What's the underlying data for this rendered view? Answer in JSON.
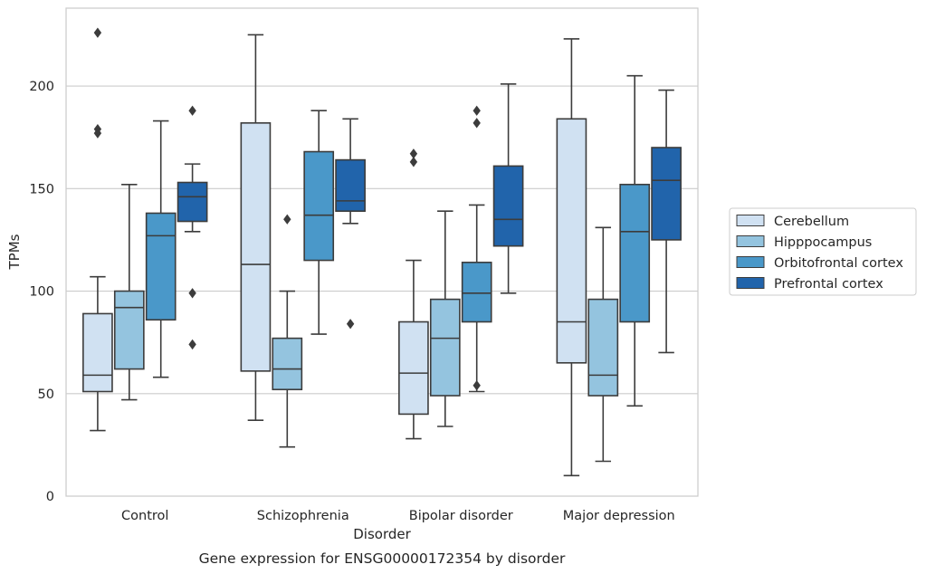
{
  "chart_data": {
    "type": "box",
    "caption": "Gene expression for ENSG00000172354 by disorder",
    "xlabel": "Disorder",
    "ylabel": "TPMs",
    "ylim": [
      0,
      238
    ],
    "yticks": [
      0,
      50,
      100,
      150,
      200
    ],
    "grid": "horizontal",
    "legend_placement": "center-right",
    "categories": [
      "Control",
      "Schizophrenia",
      "Bipolar disorder",
      "Major depression"
    ],
    "series": [
      {
        "name": "Cerebellum",
        "color": "#d0e1f2",
        "boxes": [
          {
            "low": 32,
            "q1": 51,
            "median": 59,
            "q3": 89,
            "high": 107,
            "outliers": [
              226,
              179,
              177
            ]
          },
          {
            "low": 37,
            "q1": 61,
            "median": 113,
            "q3": 182,
            "high": 225,
            "outliers": []
          },
          {
            "low": 28,
            "q1": 40,
            "median": 60,
            "q3": 85,
            "high": 115,
            "outliers": [
              167,
              163
            ]
          },
          {
            "low": 10,
            "q1": 65,
            "median": 85,
            "q3": 184,
            "high": 223,
            "outliers": []
          }
        ]
      },
      {
        "name": "Hipppocampus",
        "color": "#94c4df",
        "boxes": [
          {
            "low": 47,
            "q1": 62,
            "median": 92,
            "q3": 100,
            "high": 152,
            "outliers": []
          },
          {
            "low": 24,
            "q1": 52,
            "median": 62,
            "q3": 77,
            "high": 100,
            "outliers": [
              135
            ]
          },
          {
            "low": 34,
            "q1": 49,
            "median": 77,
            "q3": 96,
            "high": 139,
            "outliers": []
          },
          {
            "low": 17,
            "q1": 49,
            "median": 59,
            "q3": 96,
            "high": 131,
            "outliers": []
          }
        ]
      },
      {
        "name": "Orbitofrontal cortex",
        "color": "#4a98c9",
        "boxes": [
          {
            "low": 58,
            "q1": 86,
            "median": 127,
            "q3": 138,
            "high": 183,
            "outliers": []
          },
          {
            "low": 79,
            "q1": 115,
            "median": 137,
            "q3": 168,
            "high": 188,
            "outliers": []
          },
          {
            "low": 51,
            "q1": 85,
            "median": 99,
            "q3": 114,
            "high": 142,
            "outliers": [
              188,
              182,
              54
            ]
          },
          {
            "low": 44,
            "q1": 85,
            "median": 129,
            "q3": 152,
            "high": 205,
            "outliers": []
          }
        ]
      },
      {
        "name": "Prefrontal cortex",
        "color": "#2164ab",
        "boxes": [
          {
            "low": 129,
            "q1": 134,
            "median": 146,
            "q3": 153,
            "high": 162,
            "outliers": [
              188,
              99,
              74
            ]
          },
          {
            "low": 133,
            "q1": 139,
            "median": 144,
            "q3": 164,
            "high": 184,
            "outliers": [
              84
            ]
          },
          {
            "low": 99,
            "q1": 122,
            "median": 135,
            "q3": 161,
            "high": 201,
            "outliers": []
          },
          {
            "low": 70,
            "q1": 125,
            "median": 154,
            "q3": 170,
            "high": 198,
            "outliers": []
          }
        ]
      }
    ]
  }
}
